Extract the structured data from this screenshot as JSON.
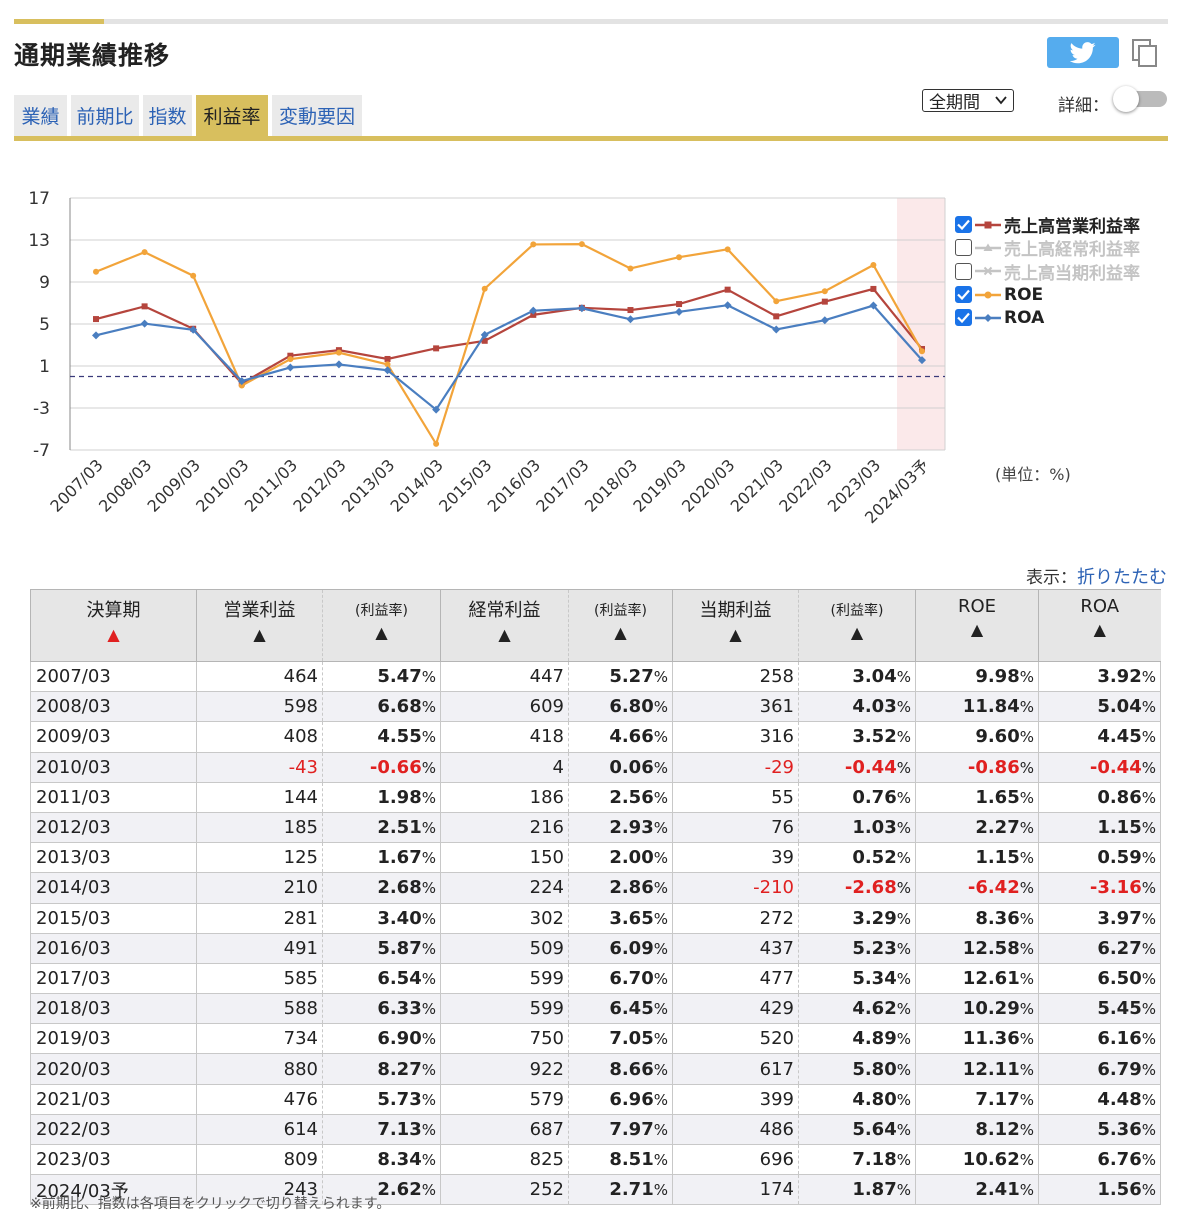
{
  "page": {
    "title": "通期業績推移"
  },
  "tabs": [
    {
      "label": "業績",
      "active": false
    },
    {
      "label": "前期比",
      "active": false
    },
    {
      "label": "指数",
      "active": false
    },
    {
      "label": "利益率",
      "active": true
    },
    {
      "label": "変動要因",
      "active": false
    }
  ],
  "controls": {
    "period_select": "全期間",
    "detail_label": "詳細：",
    "detail_toggle": false,
    "share_icon": "twitter-icon",
    "copy_icon": "copy-icon"
  },
  "chart_data": {
    "type": "line",
    "categories": [
      "2007/03",
      "2008/03",
      "2009/03",
      "2010/03",
      "2011/03",
      "2012/03",
      "2013/03",
      "2014/03",
      "2015/03",
      "2016/03",
      "2017/03",
      "2018/03",
      "2019/03",
      "2020/03",
      "2021/03",
      "2022/03",
      "2023/03",
      "2024/03予"
    ],
    "ylim": [
      -7,
      17
    ],
    "yticks": [
      "17",
      "13",
      "9",
      "5",
      "1",
      "-3",
      "-7"
    ],
    "unit_label": "(単位：%)",
    "grid": true,
    "zero_line": true,
    "forecast_shaded_index": 17,
    "legend_placement": "right",
    "series": [
      {
        "name": "売上高営業利益率",
        "visible": true,
        "color": "#b5453d",
        "marker": "square",
        "values": [
          5.47,
          6.68,
          4.55,
          -0.66,
          1.98,
          2.51,
          1.67,
          2.68,
          3.4,
          5.87,
          6.54,
          6.33,
          6.9,
          8.27,
          5.73,
          7.13,
          8.34,
          2.62
        ]
      },
      {
        "name": "売上高経常利益率",
        "visible": false,
        "color": "#c4c4c4",
        "marker": "triangle",
        "values": [
          5.27,
          6.8,
          4.66,
          0.06,
          2.56,
          2.93,
          2.0,
          2.86,
          3.65,
          6.09,
          6.7,
          6.45,
          7.05,
          8.66,
          6.96,
          7.97,
          8.51,
          2.71
        ]
      },
      {
        "name": "売上高当期利益率",
        "visible": false,
        "color": "#c4c4c4",
        "marker": "cross",
        "values": [
          3.04,
          4.03,
          3.52,
          -0.44,
          0.76,
          1.03,
          0.52,
          -2.68,
          3.29,
          5.23,
          5.34,
          4.62,
          4.89,
          5.8,
          4.8,
          5.64,
          7.18,
          1.87
        ]
      },
      {
        "name": "ROE",
        "visible": true,
        "color": "#f2a43a",
        "marker": "circle",
        "values": [
          9.98,
          11.84,
          9.6,
          -0.86,
          1.65,
          2.27,
          1.15,
          -6.42,
          8.36,
          12.58,
          12.61,
          10.29,
          11.36,
          12.11,
          7.17,
          8.12,
          10.62,
          2.41
        ]
      },
      {
        "name": "ROA",
        "visible": true,
        "color": "#4a7ec0",
        "marker": "diamond",
        "values": [
          3.92,
          5.04,
          4.45,
          -0.44,
          0.86,
          1.15,
          0.59,
          -3.16,
          3.97,
          6.27,
          6.5,
          5.45,
          6.16,
          6.79,
          4.48,
          5.36,
          6.76,
          1.56
        ]
      }
    ]
  },
  "display": {
    "label": "表示：",
    "link": "折りたたむ"
  },
  "table": {
    "headers": [
      {
        "label": "決算期",
        "arrow": "▲",
        "sorted": true
      },
      {
        "label": "営業利益",
        "arrow": "▲"
      },
      {
        "label": "(利益率)",
        "arrow": "▲",
        "sub": true
      },
      {
        "label": "経常利益",
        "arrow": "▲"
      },
      {
        "label": "(利益率)",
        "arrow": "▲",
        "sub": true
      },
      {
        "label": "当期利益",
        "arrow": "▲"
      },
      {
        "label": "(利益率)",
        "arrow": "▲",
        "sub": true
      },
      {
        "label": "ROE",
        "arrow": "▲"
      },
      {
        "label": "ROA",
        "arrow": "▲"
      }
    ],
    "rows": [
      [
        "2007/03",
        "464",
        "5.47",
        "447",
        "5.27",
        "258",
        "3.04",
        "9.98",
        "3.92"
      ],
      [
        "2008/03",
        "598",
        "6.68",
        "609",
        "6.80",
        "361",
        "4.03",
        "11.84",
        "5.04"
      ],
      [
        "2009/03",
        "408",
        "4.55",
        "418",
        "4.66",
        "316",
        "3.52",
        "9.60",
        "4.45"
      ],
      [
        "2010/03",
        "-43",
        "-0.66",
        "4",
        "0.06",
        "-29",
        "-0.44",
        "-0.86",
        "-0.44"
      ],
      [
        "2011/03",
        "144",
        "1.98",
        "186",
        "2.56",
        "55",
        "0.76",
        "1.65",
        "0.86"
      ],
      [
        "2012/03",
        "185",
        "2.51",
        "216",
        "2.93",
        "76",
        "1.03",
        "2.27",
        "1.15"
      ],
      [
        "2013/03",
        "125",
        "1.67",
        "150",
        "2.00",
        "39",
        "0.52",
        "1.15",
        "0.59"
      ],
      [
        "2014/03",
        "210",
        "2.68",
        "224",
        "2.86",
        "-210",
        "-2.68",
        "-6.42",
        "-3.16"
      ],
      [
        "2015/03",
        "281",
        "3.40",
        "302",
        "3.65",
        "272",
        "3.29",
        "8.36",
        "3.97"
      ],
      [
        "2016/03",
        "491",
        "5.87",
        "509",
        "6.09",
        "437",
        "5.23",
        "12.58",
        "6.27"
      ],
      [
        "2017/03",
        "585",
        "6.54",
        "599",
        "6.70",
        "477",
        "5.34",
        "12.61",
        "6.50"
      ],
      [
        "2018/03",
        "588",
        "6.33",
        "599",
        "6.45",
        "429",
        "4.62",
        "10.29",
        "5.45"
      ],
      [
        "2019/03",
        "734",
        "6.90",
        "750",
        "7.05",
        "520",
        "4.89",
        "11.36",
        "6.16"
      ],
      [
        "2020/03",
        "880",
        "8.27",
        "922",
        "8.66",
        "617",
        "5.80",
        "12.11",
        "6.79"
      ],
      [
        "2021/03",
        "476",
        "5.73",
        "579",
        "6.96",
        "399",
        "4.80",
        "7.17",
        "4.48"
      ],
      [
        "2022/03",
        "614",
        "7.13",
        "687",
        "7.97",
        "486",
        "5.64",
        "8.12",
        "5.36"
      ],
      [
        "2023/03",
        "809",
        "8.34",
        "825",
        "8.51",
        "696",
        "7.18",
        "10.62",
        "6.76"
      ],
      [
        "2024/03予",
        "243",
        "2.62",
        "252",
        "2.71",
        "174",
        "1.87",
        "2.41",
        "1.56"
      ]
    ],
    "pct_suffix": "%"
  },
  "footnote": "※前期比、指数は各項目をクリックで切り替えられます。"
}
